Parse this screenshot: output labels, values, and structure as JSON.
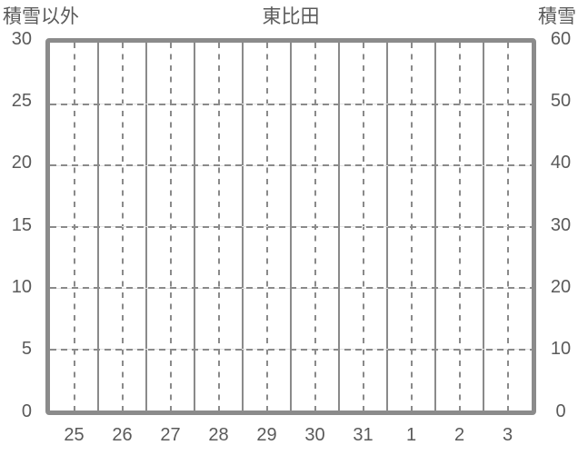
{
  "colors": {
    "background": "#ffffff",
    "frame": "#8b8b8b",
    "grid": "#8a8a8a",
    "grid_light": "#e2e2e2",
    "text": "#5a5a5a"
  },
  "chart_data": {
    "type": "line",
    "title": "東比田",
    "left_axis": {
      "label": "積雪以外",
      "range": [
        0,
        30
      ],
      "ticks": [
        0,
        5,
        10,
        15,
        20,
        25,
        30
      ]
    },
    "right_axis": {
      "label": "積雪",
      "range": [
        0,
        60
      ],
      "ticks": [
        0,
        10,
        20,
        30,
        40,
        50,
        60
      ]
    },
    "x_categories": [
      "25",
      "26",
      "27",
      "28",
      "29",
      "30",
      "31",
      "1",
      "2",
      "3"
    ],
    "series": [],
    "grid": {
      "horizontal": "light solid line with dark dashed overlay at each left-axis tick",
      "vertical_day_boundaries": "solid",
      "vertical_day_centers": "dashed",
      "legend": "none"
    }
  }
}
